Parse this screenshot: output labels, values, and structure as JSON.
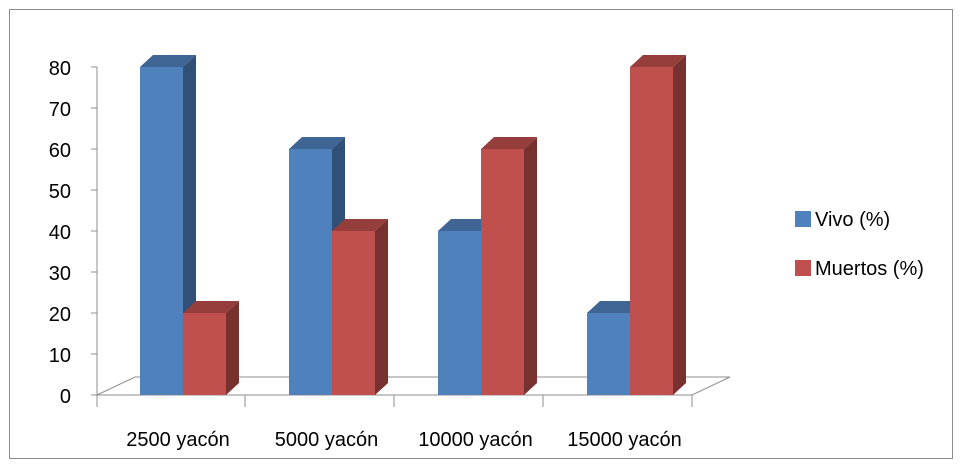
{
  "chart_data": {
    "type": "bar",
    "style": "3d-clustered-column",
    "categories": [
      "2500 yacón",
      "5000 yacón",
      "10000 yacón",
      "15000 yacón"
    ],
    "series": [
      {
        "name": "Vivo (%)",
        "values": [
          80,
          60,
          40,
          20
        ],
        "color": "#4F81BD"
      },
      {
        "name": "Muertos (%)",
        "values": [
          20,
          40,
          60,
          80
        ],
        "color": "#C0504D"
      }
    ],
    "y_ticks": [
      "0",
      "10",
      "20",
      "30",
      "40",
      "50",
      "60",
      "70",
      "80"
    ],
    "ylim": [
      0,
      80
    ],
    "title": "",
    "xlabel": "",
    "ylabel": "",
    "grid": false,
    "legend_position": "right"
  }
}
